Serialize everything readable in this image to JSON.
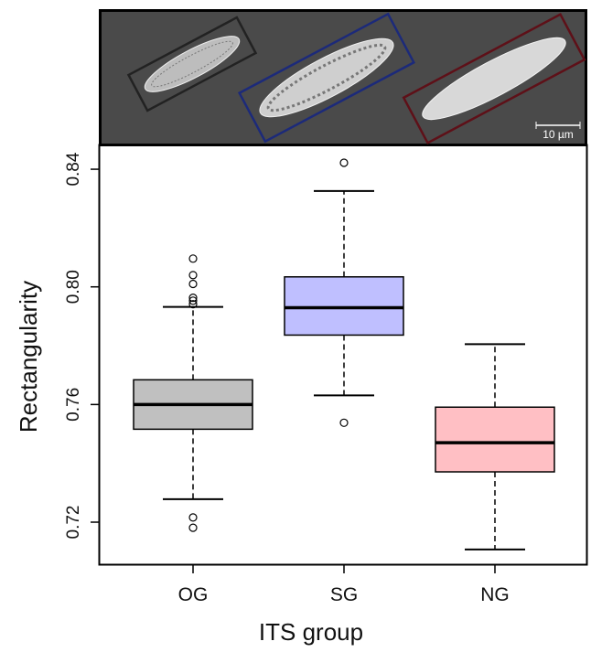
{
  "chart_data": {
    "type": "box",
    "xlabel": "ITS group",
    "ylabel": "Rectangularity",
    "annotations": [
      "10 µm"
    ],
    "categories": [
      "OG",
      "SG",
      "NG"
    ],
    "boxes": [
      {
        "whisker_low": 0.7278,
        "q1": 0.7516,
        "median": 0.76,
        "q3": 0.7684,
        "whisker_high": 0.7932,
        "outliers": [
          0.8096,
          0.804,
          0.801,
          0.7963,
          0.7953,
          0.7941,
          0.7216,
          0.7181
        ],
        "color": "#c0c0c0"
      },
      {
        "whisker_low": 0.7631,
        "q1": 0.7836,
        "median": 0.7929,
        "q3": 0.8034,
        "whisker_high": 0.8326,
        "outliers": [
          0.8422,
          0.7538
        ],
        "color": "#bfbfff"
      },
      {
        "whisker_low": 0.7107,
        "q1": 0.7371,
        "median": 0.747,
        "q3": 0.7591,
        "whisker_high": 0.7805,
        "outliers": [],
        "color": "#ffbfc4"
      }
    ],
    "ylim": [
      0.7057,
      0.8481
    ],
    "yticks": [
      {
        "value": 0.72,
        "label": "0.72"
      },
      {
        "value": 0.76,
        "label": "0.76"
      },
      {
        "value": 0.8,
        "label": "0.80"
      },
      {
        "value": 0.84,
        "label": "0.84"
      }
    ]
  }
}
